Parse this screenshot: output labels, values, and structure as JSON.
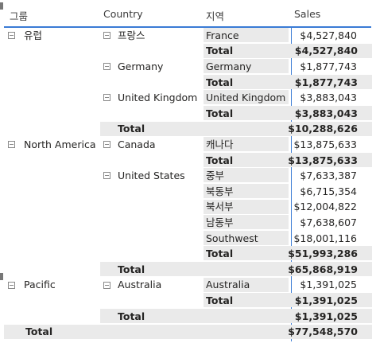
{
  "headers": {
    "group": "그룹",
    "country": "Country",
    "region": "지역",
    "sales": "Sales"
  },
  "groups": [
    {
      "label": "유럽",
      "countries": [
        {
          "label": "프랑스",
          "regions": [
            {
              "label": "France",
              "sales": "$4,527,840"
            }
          ],
          "total_label": "Total",
          "total": "$4,527,840"
        },
        {
          "label": "Germany",
          "regions": [
            {
              "label": "Germany",
              "sales": "$1,877,743"
            }
          ],
          "total_label": "Total",
          "total": "$1,877,743"
        },
        {
          "label": "United Kingdom",
          "regions": [
            {
              "label": "United Kingdom",
              "sales": "$3,883,043"
            }
          ],
          "total_label": "Total",
          "total": "$3,883,043"
        }
      ],
      "total_label": "Total",
      "total": "$10,288,626"
    },
    {
      "label": "North America",
      "countries": [
        {
          "label": "Canada",
          "regions": [
            {
              "label": "캐나다",
              "sales": "$13,875,633"
            }
          ],
          "total_label": "Total",
          "total": "$13,875,633"
        },
        {
          "label": "United States",
          "regions": [
            {
              "label": "중부",
              "sales": "$7,633,387"
            },
            {
              "label": "북동부",
              "sales": "$6,715,354"
            },
            {
              "label": "북서부",
              "sales": "$12,004,822"
            },
            {
              "label": "남동부",
              "sales": "$7,638,607"
            },
            {
              "label": "Southwest",
              "sales": "$18,001,116"
            }
          ],
          "total_label": "Total",
          "total": "$51,993,286"
        }
      ],
      "total_label": "Total",
      "total": "$65,868,919"
    },
    {
      "label": "Pacific",
      "countries": [
        {
          "label": "Australia",
          "regions": [
            {
              "label": "Australia",
              "sales": "$1,391,025"
            }
          ],
          "total_label": "Total",
          "total": "$1,391,025"
        }
      ],
      "total_label": "Total",
      "total": "$1,391,025"
    }
  ],
  "grand_total": {
    "label": "Total",
    "value": "$77,548,570"
  }
}
